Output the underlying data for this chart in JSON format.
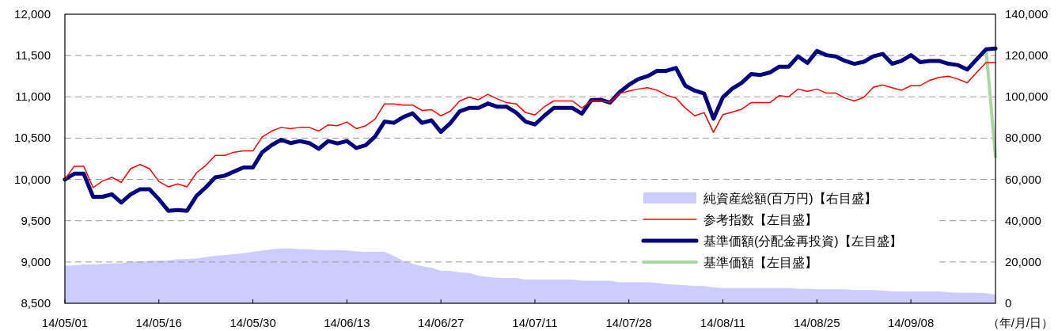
{
  "chart_data": {
    "type": "line",
    "categories": [
      "14/05/01",
      null,
      null,
      null,
      null,
      null,
      null,
      null,
      null,
      null,
      "14/05/16",
      null,
      null,
      null,
      null,
      null,
      null,
      null,
      null,
      null,
      "14/05/30",
      null,
      null,
      null,
      null,
      null,
      null,
      null,
      null,
      null,
      "14/06/13",
      null,
      null,
      null,
      null,
      null,
      null,
      null,
      null,
      null,
      "14/06/27",
      null,
      null,
      null,
      null,
      null,
      null,
      null,
      null,
      null,
      "14/07/11",
      null,
      null,
      null,
      null,
      null,
      null,
      null,
      null,
      null,
      "14/07/28",
      null,
      null,
      null,
      null,
      null,
      null,
      null,
      null,
      null,
      "14/08/11",
      null,
      null,
      null,
      null,
      null,
      null,
      null,
      null,
      null,
      "14/08/25",
      null,
      null,
      null,
      null,
      null,
      null,
      null,
      null,
      null,
      "14/09/08",
      null,
      null,
      null,
      null,
      null,
      null,
      null,
      null,
      null
    ],
    "xlabel": "（年/月/日）",
    "ylim": [
      8500,
      12000
    ],
    "yticks": [
      {
        "value": 8500,
        "label": "8,500"
      },
      {
        "value": 9000,
        "label": "9,000"
      },
      {
        "value": 9500,
        "label": "9,500"
      },
      {
        "value": 10000,
        "label": "10,000"
      },
      {
        "value": 10500,
        "label": "10,500"
      },
      {
        "value": 11000,
        "label": "11,000"
      },
      {
        "value": 11500,
        "label": "11,500"
      },
      {
        "value": 12000,
        "label": "12,000"
      }
    ],
    "y2lim": [
      0,
      140000
    ],
    "y2ticks": [
      0,
      {
        "value": 20000,
        "label": "20,000"
      },
      {
        "value": 40000,
        "label": "40,000"
      },
      {
        "value": 60000,
        "label": "60,000"
      },
      {
        "value": 80000,
        "label": "80,000"
      },
      {
        "value": 100000,
        "label": "100,000"
      },
      {
        "value": 120000,
        "label": "120,000"
      },
      {
        "value": 140000,
        "label": "140,000"
      }
    ],
    "grid": "y",
    "legend": "bottom right",
    "series": [
      {
        "name": "純資産総額(百万円)【右目盛】",
        "type": "area",
        "axis": "y2",
        "color": "#ccccff",
        "values": [
          18200,
          18300,
          18800,
          18800,
          19100,
          19400,
          19400,
          20100,
          20300,
          20500,
          20700,
          20700,
          21400,
          21400,
          21700,
          22400,
          23000,
          23300,
          23800,
          24300,
          24900,
          25500,
          26100,
          26600,
          26600,
          26200,
          26200,
          25800,
          25800,
          25800,
          25600,
          25100,
          24900,
          24900,
          24900,
          23000,
          20500,
          19200,
          17900,
          17300,
          15700,
          15700,
          15000,
          14700,
          13400,
          12800,
          12300,
          12300,
          12300,
          11500,
          11500,
          11500,
          11500,
          11500,
          11500,
          10900,
          10900,
          10900,
          10900,
          10200,
          10200,
          10200,
          10200,
          9900,
          9200,
          9000,
          8700,
          8300,
          8300,
          7700,
          7400,
          7400,
          7400,
          7400,
          7400,
          7400,
          7400,
          7400,
          7000,
          7000,
          6800,
          6800,
          6800,
          6800,
          6400,
          6400,
          6400,
          6100,
          5800,
          5800,
          5800,
          5800,
          5800,
          5800,
          5400,
          5100,
          5100,
          5100,
          4900,
          4200
        ]
      },
      {
        "name": "参考指数【左目盛】",
        "color": "#ff0000",
        "values": [
          10000,
          10160,
          10160,
          9900,
          9980,
          10025,
          9965,
          10130,
          10180,
          10130,
          9975,
          9910,
          9945,
          9910,
          10080,
          10170,
          10290,
          10290,
          10330,
          10345,
          10345,
          10515,
          10585,
          10630,
          10615,
          10630,
          10630,
          10585,
          10660,
          10650,
          10695,
          10615,
          10650,
          10730,
          10915,
          10915,
          10900,
          10900,
          10835,
          10845,
          10770,
          10825,
          10950,
          10995,
          10965,
          11030,
          10975,
          10930,
          10915,
          10810,
          10780,
          10880,
          10950,
          10950,
          10950,
          10865,
          10950,
          10950,
          10935,
          11040,
          11070,
          11095,
          11110,
          11080,
          11020,
          10985,
          10865,
          10770,
          10810,
          10570,
          10785,
          10815,
          10850,
          10930,
          10930,
          10930,
          11015,
          11000,
          11095,
          11065,
          11095,
          11045,
          11045,
          10985,
          10950,
          10995,
          11115,
          11145,
          11110,
          11080,
          11135,
          11135,
          11200,
          11235,
          11250,
          11215,
          11170,
          11295,
          11415,
          11415
        ]
      },
      {
        "name": "基準価額(分配金再投資)【左目盛】",
        "color": "#000080",
        "values": [
          10000,
          10070,
          10070,
          9790,
          9790,
          9820,
          9720,
          9820,
          9880,
          9880,
          9760,
          9620,
          9630,
          9620,
          9800,
          9905,
          10025,
          10045,
          10095,
          10145,
          10145,
          10330,
          10415,
          10480,
          10440,
          10465,
          10440,
          10370,
          10465,
          10435,
          10465,
          10380,
          10415,
          10520,
          10700,
          10685,
          10755,
          10800,
          10685,
          10715,
          10575,
          10680,
          10825,
          10865,
          10865,
          10920,
          10880,
          10880,
          10810,
          10700,
          10665,
          10770,
          10865,
          10865,
          10865,
          10795,
          10960,
          10965,
          10930,
          11055,
          11145,
          11215,
          11250,
          11315,
          11315,
          11350,
          11135,
          11075,
          11040,
          10735,
          10995,
          11100,
          11170,
          11275,
          11265,
          11295,
          11365,
          11365,
          11490,
          11410,
          11555,
          11505,
          11490,
          11435,
          11400,
          11425,
          11490,
          11520,
          11400,
          11435,
          11505,
          11420,
          11435,
          11435,
          11400,
          11385,
          11330,
          11455,
          11575,
          11585
        ]
      },
      {
        "name": "基準価額【左目盛】",
        "color": "#a8d8a0",
        "values": [
          null,
          null,
          null,
          null,
          null,
          null,
          null,
          null,
          null,
          null,
          null,
          null,
          null,
          null,
          null,
          null,
          null,
          null,
          null,
          null,
          null,
          null,
          null,
          null,
          null,
          null,
          null,
          null,
          null,
          null,
          null,
          null,
          null,
          null,
          null,
          null,
          null,
          null,
          null,
          null,
          null,
          null,
          null,
          null,
          null,
          null,
          null,
          null,
          null,
          null,
          null,
          null,
          null,
          null,
          null,
          null,
          null,
          null,
          null,
          null,
          null,
          null,
          null,
          null,
          null,
          null,
          null,
          null,
          null,
          null,
          null,
          null,
          null,
          null,
          null,
          null,
          null,
          null,
          null,
          null,
          null,
          null,
          null,
          null,
          null,
          null,
          null,
          null,
          null,
          null,
          null,
          null,
          null,
          null,
          null,
          null,
          null,
          null,
          11575,
          10275
        ]
      }
    ]
  }
}
